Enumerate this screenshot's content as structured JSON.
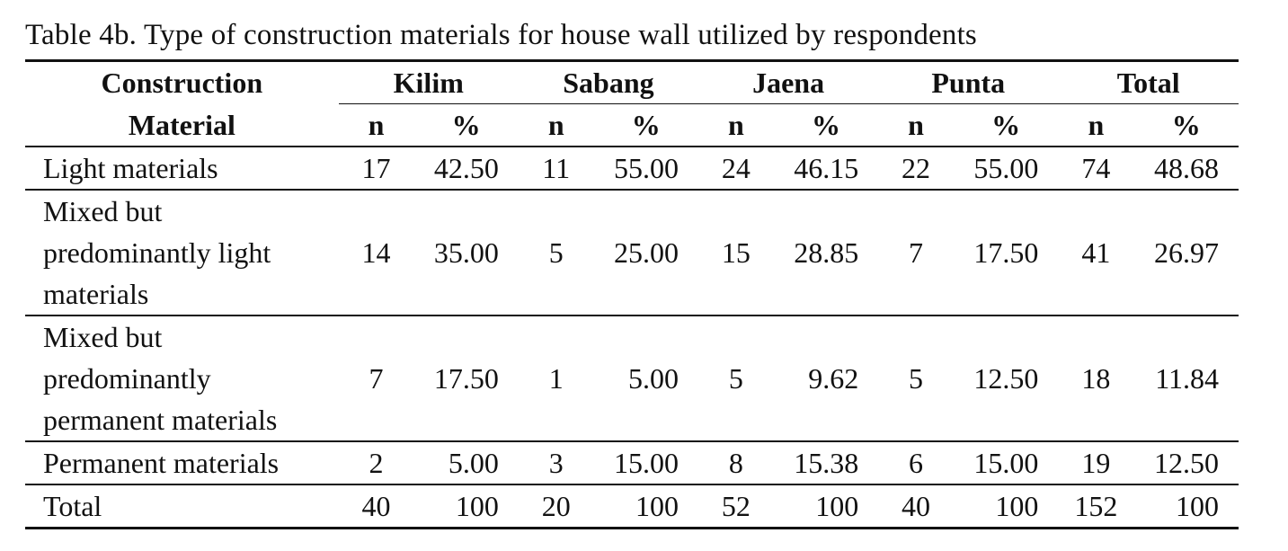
{
  "caption": "Table 4b. Type of construction materials for house wall utilized by respondents",
  "header": {
    "row_label_line1": "Construction",
    "row_label_line2": "Material",
    "groups": [
      "Kilim",
      "Sabang",
      "Jaena",
      "Punta",
      "Total"
    ],
    "sub_n": "n",
    "sub_pct": "%"
  },
  "rows": [
    {
      "label": "Light materials",
      "values": [
        "17",
        "42.50",
        "11",
        "55.00",
        "24",
        "46.15",
        "22",
        "55.00",
        "74",
        "48.68"
      ]
    },
    {
      "label": "Mixed but predominantly light materials",
      "label_lines": [
        "Mixed but",
        "predominantly light",
        "materials"
      ],
      "values": [
        "14",
        "35.00",
        "5",
        "25.00",
        "15",
        "28.85",
        "7",
        "17.50",
        "41",
        "26.97"
      ]
    },
    {
      "label": "Mixed but predominantly permanent materials",
      "label_lines": [
        "Mixed but",
        "predominantly",
        "permanent materials"
      ],
      "values": [
        "7",
        "17.50",
        "1",
        "5.00",
        "5",
        "9.62",
        "5",
        "12.50",
        "18",
        "11.84"
      ]
    },
    {
      "label": "Permanent materials",
      "values": [
        "2",
        "5.00",
        "3",
        "15.00",
        "8",
        "15.38",
        "6",
        "15.00",
        "19",
        "12.50"
      ]
    },
    {
      "label": "Total",
      "values": [
        "40",
        "100",
        "20",
        "100",
        "52",
        "100",
        "40",
        "100",
        "152",
        "100"
      ]
    }
  ]
}
